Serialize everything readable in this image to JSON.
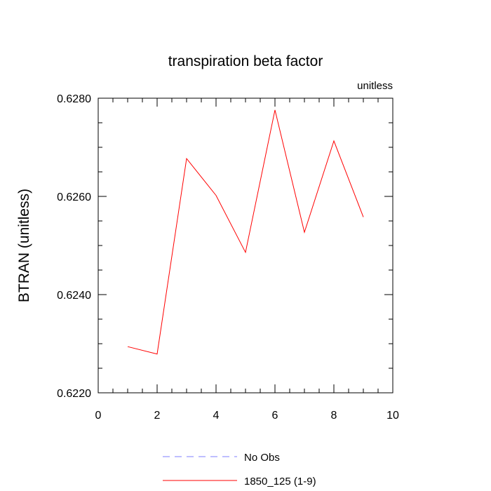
{
  "chart_data": {
    "type": "line",
    "title": "transpiration beta factor",
    "subtitle": "unitless",
    "ylabel": "BTRAN  (unitless)",
    "xlabel": "",
    "xlim": [
      0,
      10
    ],
    "ylim": [
      0.622,
      0.628
    ],
    "xticks": [
      0,
      2,
      4,
      6,
      8,
      10
    ],
    "xtick_labels": [
      "0",
      "2",
      "4",
      "6",
      "8",
      "10"
    ],
    "yticks": [
      0.622,
      0.624,
      0.626,
      0.628
    ],
    "ytick_labels": [
      "0.6220",
      "0.6240",
      "0.6260",
      "0.6280"
    ],
    "grid": false,
    "legend_position": "bottom-center",
    "series": [
      {
        "name": "1850_125 (1-9)",
        "color": "#ff0000",
        "dash": "solid",
        "x": [
          1,
          2,
          3,
          4,
          5,
          6,
          7,
          8,
          9
        ],
        "y": [
          0.62294,
          0.62279,
          0.62677,
          0.62602,
          0.62486,
          0.62776,
          0.62527,
          0.62713,
          0.62558
        ]
      }
    ],
    "legend": [
      {
        "label": "No Obs",
        "color": "#7f7fff",
        "dash": "dashed"
      },
      {
        "label": "1850_125 (1-9)",
        "color": "#ff0000",
        "dash": "solid"
      }
    ]
  }
}
